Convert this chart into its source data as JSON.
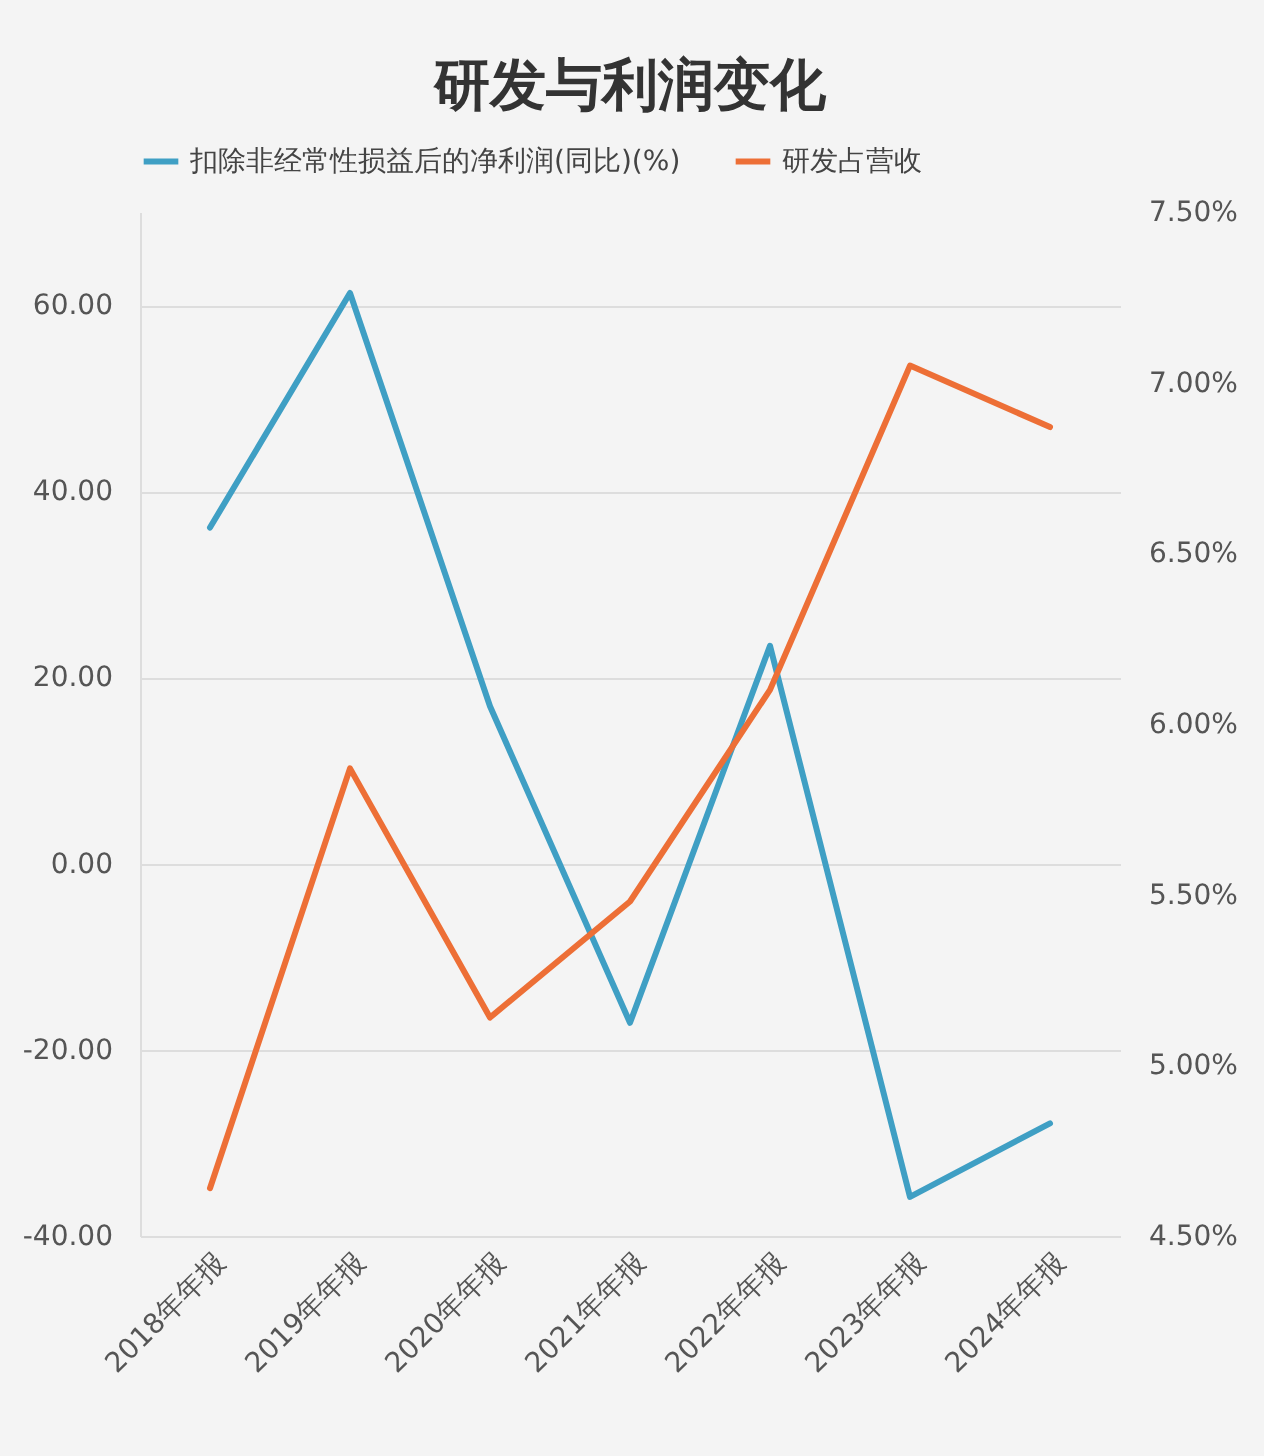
{
  "chart_data": {
    "type": "line",
    "title": "研发与利润变化",
    "categories": [
      "2018年年报",
      "2019年年报",
      "2020年年报",
      "2021年年报",
      "2022年年报",
      "2023年年报",
      "2024年年报"
    ],
    "series": [
      {
        "name": "扣除非经常性损益后的净利润(同比)(%)",
        "color": "#3f9fc4",
        "values": [
          36.1,
          61.3,
          16.9,
          -17.1,
          23.4,
          -35.8,
          -27.9
        ]
      },
      {
        "name": "研发占营收",
        "color": "#ed6f36",
        "axis": "y2",
        "values": [
          4.64,
          5.87,
          5.14,
          5.48,
          6.1,
          7.05,
          6.87
        ]
      }
    ],
    "ylim": [
      -40,
      70
    ],
    "yticks": [
      {
        "value": -40,
        "label": "-40.00"
      },
      {
        "value": -20,
        "label": "-20.00"
      },
      {
        "value": 0,
        "label": "0.00"
      },
      {
        "value": 20,
        "label": "20.00"
      },
      {
        "value": 40,
        "label": "40.00"
      },
      {
        "value": 60,
        "label": "60.00"
      }
    ],
    "y2lim": [
      4.5,
      7.5
    ],
    "y2ticks": [
      {
        "value": 4.5,
        "label": "4.50%"
      },
      {
        "value": 5,
        "label": "5.00%"
      },
      {
        "value": 5.5,
        "label": "5.50%"
      },
      {
        "value": 6,
        "label": "6.00%"
      },
      {
        "value": 6.5,
        "label": "6.50%"
      },
      {
        "value": 7,
        "label": "7.00%"
      },
      {
        "value": 7.5,
        "label": "7.50%"
      }
    ],
    "grid": "y",
    "legend": "top",
    "marker": "none",
    "line_style": "solid"
  }
}
